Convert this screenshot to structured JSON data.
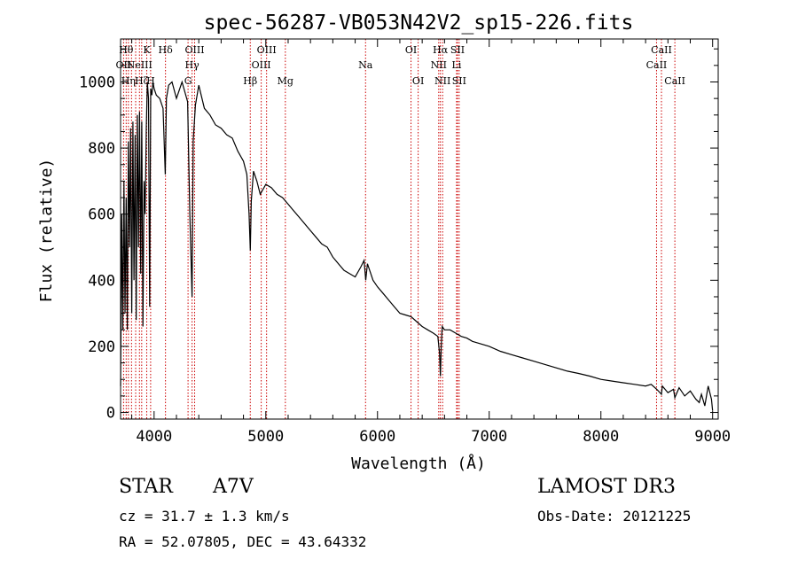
{
  "chart_data": {
    "type": "line",
    "title": "spec-56287-VB053N42V2_sp15-226.fits",
    "xlabel": "Wavelength (Å)",
    "ylabel": "Flux (relative)",
    "xlim": [
      3700,
      9050
    ],
    "ylim": [
      -20,
      1130
    ],
    "xticks": [
      4000,
      5000,
      6000,
      7000,
      8000,
      9000
    ],
    "yticks": [
      0,
      200,
      400,
      600,
      800,
      1000
    ],
    "xtick_labels": [
      "4000",
      "5000",
      "6000",
      "7000",
      "8000",
      "9000"
    ],
    "ytick_labels": [
      "0",
      "200",
      "400",
      "600",
      "800",
      "1000"
    ],
    "series": [
      {
        "name": "flux",
        "color": "#000000",
        "x": [
          3700,
          3710,
          3720,
          3730,
          3740,
          3750,
          3760,
          3770,
          3780,
          3790,
          3800,
          3810,
          3820,
          3830,
          3840,
          3850,
          3860,
          3870,
          3880,
          3890,
          3900,
          3910,
          3920,
          3930,
          3940,
          3950,
          3960,
          3970,
          3980,
          3990,
          4000,
          4020,
          4050,
          4080,
          4100,
          4110,
          4130,
          4160,
          4200,
          4250,
          4300,
          4320,
          4340,
          4350,
          4370,
          4400,
          4450,
          4500,
          4550,
          4600,
          4650,
          4700,
          4750,
          4800,
          4830,
          4850,
          4861,
          4870,
          4890,
          4920,
          4950,
          5000,
          5050,
          5100,
          5150,
          5200,
          5250,
          5300,
          5350,
          5400,
          5450,
          5500,
          5550,
          5600,
          5650,
          5700,
          5750,
          5800,
          5850,
          5880,
          5895,
          5910,
          5930,
          5960,
          6000,
          6050,
          6100,
          6150,
          6200,
          6250,
          6300,
          6350,
          6400,
          6450,
          6500,
          6540,
          6555,
          6563,
          6570,
          6580,
          6600,
          6650,
          6700,
          6750,
          6800,
          6850,
          6900,
          7000,
          7100,
          7200,
          7300,
          7400,
          7500,
          7600,
          7700,
          7800,
          7900,
          8000,
          8100,
          8200,
          8300,
          8400,
          8450,
          8500,
          8542,
          8550,
          8600,
          8650,
          8662,
          8700,
          8750,
          8800,
          8850,
          8880,
          8900,
          8930,
          8960,
          8990,
          9000
        ],
        "values": [
          80,
          600,
          250,
          700,
          300,
          650,
          250,
          820,
          500,
          860,
          300,
          880,
          400,
          840,
          280,
          900,
          500,
          910,
          420,
          880,
          260,
          700,
          600,
          860,
          1000,
          950,
          320,
          980,
          960,
          1000,
          980,
          960,
          950,
          920,
          720,
          950,
          990,
          1000,
          950,
          1000,
          940,
          600,
          350,
          820,
          930,
          990,
          920,
          900,
          870,
          860,
          840,
          830,
          790,
          760,
          720,
          600,
          490,
          640,
          730,
          700,
          660,
          690,
          680,
          660,
          650,
          630,
          610,
          590,
          570,
          550,
          530,
          510,
          500,
          470,
          450,
          430,
          420,
          410,
          440,
          460,
          400,
          450,
          430,
          400,
          380,
          360,
          340,
          320,
          300,
          295,
          290,
          275,
          260,
          250,
          240,
          230,
          180,
          110,
          200,
          260,
          250,
          250,
          240,
          230,
          225,
          215,
          210,
          200,
          185,
          175,
          165,
          155,
          145,
          135,
          125,
          118,
          110,
          100,
          95,
          90,
          85,
          80,
          85,
          70,
          55,
          80,
          60,
          70,
          45,
          75,
          50,
          65,
          40,
          30,
          55,
          20,
          80,
          40,
          5
        ]
      }
    ],
    "line_markers": [
      {
        "wl": 3727,
        "label": "OII",
        "row": 2
      },
      {
        "wl": 3750,
        "label": "Hθ",
        "row": 1
      },
      {
        "wl": 3770,
        "label": "Hη",
        "row": 3
      },
      {
        "wl": 3798,
        "label": "",
        "row": 0
      },
      {
        "wl": 3835,
        "label": "",
        "row": 0
      },
      {
        "wl": 3869,
        "label": "NeIII",
        "row": 2
      },
      {
        "wl": 3889,
        "label": "Hζ",
        "row": 3
      },
      {
        "wl": 3934,
        "label": "K",
        "row": 1
      },
      {
        "wl": 3969,
        "label": "H",
        "row": 3
      },
      {
        "wl": 4102,
        "label": "Hδ",
        "row": 1
      },
      {
        "wl": 4304,
        "label": "G",
        "row": 3
      },
      {
        "wl": 4340,
        "label": "Hγ",
        "row": 2
      },
      {
        "wl": 4363,
        "label": "OIII",
        "row": 1
      },
      {
        "wl": 4861,
        "label": "Hβ",
        "row": 3
      },
      {
        "wl": 4959,
        "label": "OIII",
        "row": 2
      },
      {
        "wl": 5007,
        "label": "OIII",
        "row": 1
      },
      {
        "wl": 5175,
        "label": "Mg",
        "row": 3
      },
      {
        "wl": 5893,
        "label": "Na",
        "row": 2
      },
      {
        "wl": 6300,
        "label": "OI",
        "row": 1
      },
      {
        "wl": 6364,
        "label": "OI",
        "row": 3
      },
      {
        "wl": 6548,
        "label": "NII",
        "row": 2
      },
      {
        "wl": 6563,
        "label": "Hα",
        "row": 1
      },
      {
        "wl": 6583,
        "label": "NII",
        "row": 3
      },
      {
        "wl": 6708,
        "label": "Li",
        "row": 2
      },
      {
        "wl": 6716,
        "label": "SII",
        "row": 1
      },
      {
        "wl": 6731,
        "label": "SII",
        "row": 3
      },
      {
        "wl": 8498,
        "label": "CaII",
        "row": 2
      },
      {
        "wl": 8542,
        "label": "CaII",
        "row": 1
      },
      {
        "wl": 8662,
        "label": "CaII",
        "row": 3
      }
    ],
    "marker_color": "#cc0000"
  },
  "info": {
    "class": "STAR",
    "subclass": "A7V",
    "survey": "LAMOST DR3",
    "cz": "cz = 31.7 ± 1.3 km/s",
    "obs_date": "Obs-Date: 20121225",
    "radec": "RA =  52.07805, DEC =  43.64332"
  }
}
